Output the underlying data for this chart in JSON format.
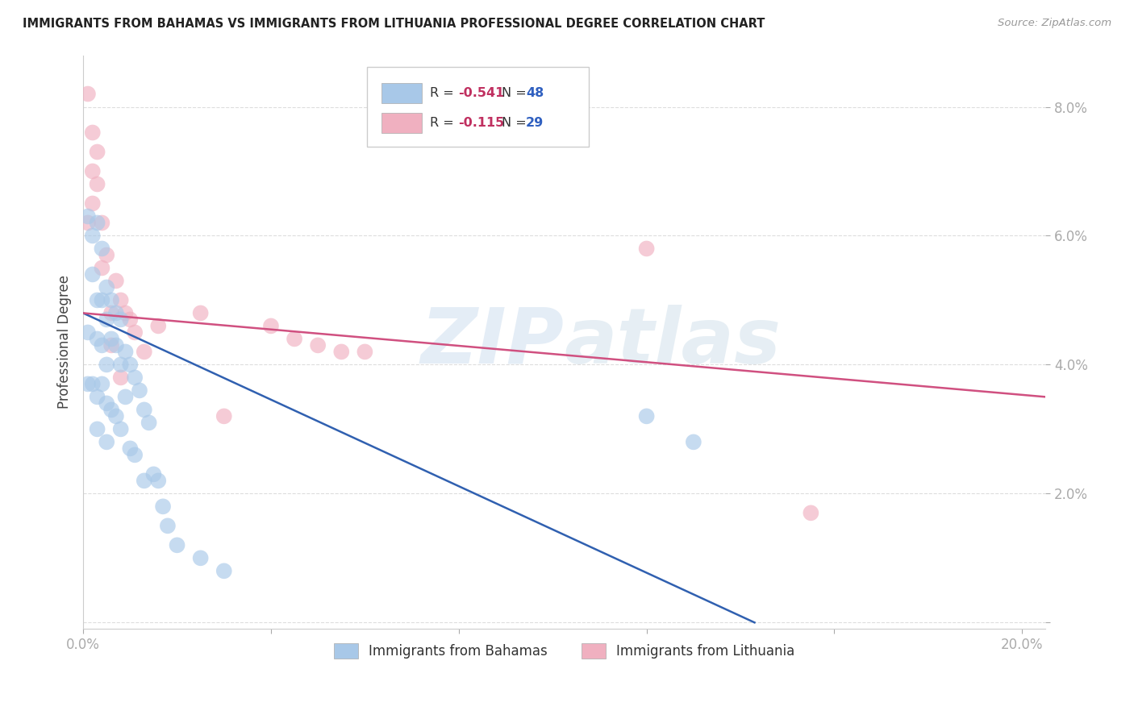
{
  "title": "IMMIGRANTS FROM BAHAMAS VS IMMIGRANTS FROM LITHUANIA PROFESSIONAL DEGREE CORRELATION CHART",
  "source": "Source: ZipAtlas.com",
  "ylabel": "Professional Degree",
  "xlim": [
    0.0,
    0.205
  ],
  "ylim": [
    -0.001,
    0.088
  ],
  "xtick_positions": [
    0.0,
    0.04,
    0.08,
    0.12,
    0.16,
    0.2
  ],
  "xtick_labels": [
    "0.0%",
    "",
    "",
    "",
    "",
    "20.0%"
  ],
  "ytick_positions": [
    0.0,
    0.02,
    0.04,
    0.06,
    0.08
  ],
  "ytick_labels": [
    "",
    "2.0%",
    "4.0%",
    "6.0%",
    "8.0%"
  ],
  "watermark": "ZIPatlas",
  "legend_R1": "-0.541",
  "legend_N1": "48",
  "legend_R2": "-0.115",
  "legend_N2": "29",
  "legend_label1": "Immigrants from Bahamas",
  "legend_label2": "Immigrants from Lithuania",
  "color_blue": "#a8c8e8",
  "color_pink": "#f0b0c0",
  "line_color_blue": "#3060b0",
  "line_color_pink": "#d05080",
  "blue_line_x": [
    0.0,
    0.143
  ],
  "blue_line_y": [
    0.048,
    0.0
  ],
  "pink_line_x": [
    0.0,
    0.205
  ],
  "pink_line_y": [
    0.048,
    0.035
  ],
  "background_color": "#ffffff",
  "grid_color": "#dddddd",
  "blue_x": [
    0.001,
    0.001,
    0.001,
    0.002,
    0.002,
    0.002,
    0.003,
    0.003,
    0.003,
    0.003,
    0.003,
    0.004,
    0.004,
    0.004,
    0.004,
    0.005,
    0.005,
    0.005,
    0.005,
    0.005,
    0.006,
    0.006,
    0.006,
    0.007,
    0.007,
    0.007,
    0.008,
    0.008,
    0.008,
    0.009,
    0.009,
    0.01,
    0.01,
    0.011,
    0.011,
    0.012,
    0.013,
    0.013,
    0.014,
    0.015,
    0.016,
    0.017,
    0.018,
    0.02,
    0.025,
    0.03,
    0.12,
    0.13
  ],
  "blue_y": [
    0.063,
    0.045,
    0.037,
    0.06,
    0.054,
    0.037,
    0.062,
    0.05,
    0.044,
    0.035,
    0.03,
    0.058,
    0.05,
    0.043,
    0.037,
    0.052,
    0.047,
    0.04,
    0.034,
    0.028,
    0.05,
    0.044,
    0.033,
    0.048,
    0.043,
    0.032,
    0.047,
    0.04,
    0.03,
    0.042,
    0.035,
    0.04,
    0.027,
    0.038,
    0.026,
    0.036,
    0.033,
    0.022,
    0.031,
    0.023,
    0.022,
    0.018,
    0.015,
    0.012,
    0.01,
    0.008,
    0.032,
    0.028
  ],
  "pink_x": [
    0.001,
    0.001,
    0.002,
    0.002,
    0.002,
    0.003,
    0.003,
    0.004,
    0.004,
    0.005,
    0.006,
    0.006,
    0.007,
    0.008,
    0.008,
    0.009,
    0.01,
    0.011,
    0.013,
    0.016,
    0.025,
    0.03,
    0.04,
    0.045,
    0.05,
    0.055,
    0.06,
    0.12,
    0.155
  ],
  "pink_y": [
    0.082,
    0.062,
    0.076,
    0.07,
    0.065,
    0.073,
    0.068,
    0.062,
    0.055,
    0.057,
    0.048,
    0.043,
    0.053,
    0.05,
    0.038,
    0.048,
    0.047,
    0.045,
    0.042,
    0.046,
    0.048,
    0.032,
    0.046,
    0.044,
    0.043,
    0.042,
    0.042,
    0.058,
    0.017
  ]
}
